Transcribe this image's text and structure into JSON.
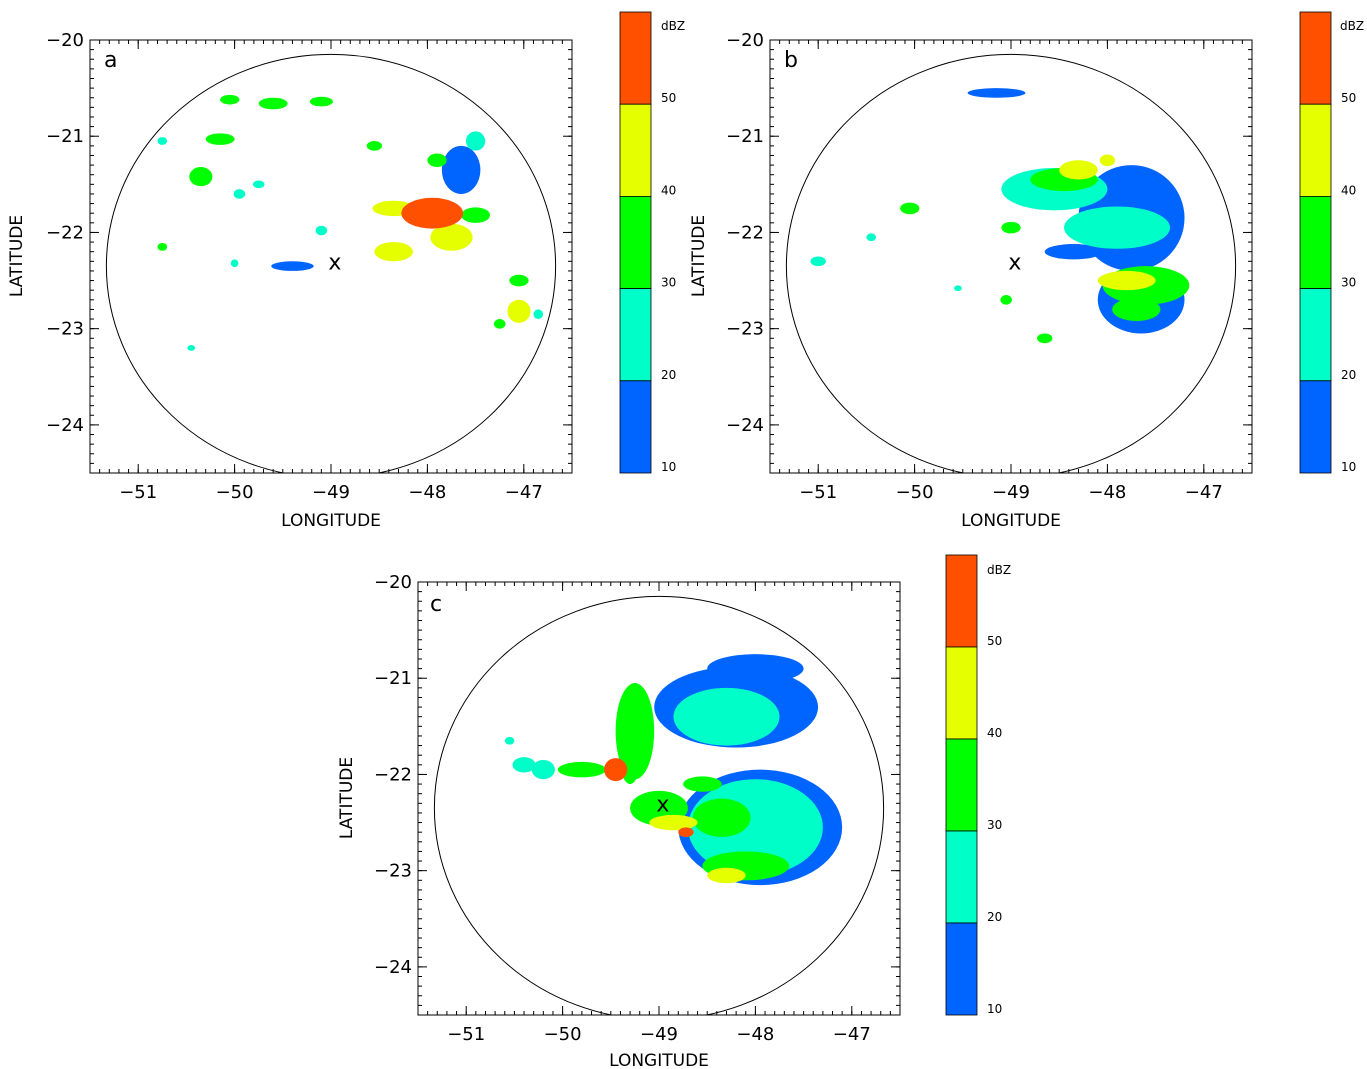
{
  "color_scale": {
    "unit_label": "dBZ",
    "boundaries": [
      10,
      20,
      30,
      40,
      50,
      57
    ],
    "tick_labels": [
      "10",
      "20",
      "30",
      "40",
      "50"
    ],
    "colors": [
      "#0064ff",
      "#00ffc8",
      "#00ff00",
      "#e6ff00",
      "#ff5000"
    ]
  },
  "marker_symbol": "x",
  "chart_data": [
    {
      "type": "heatmap",
      "panel_label": "a",
      "xlabel": "LONGITUDE",
      "ylabel": "LATITUDE",
      "xlim": [
        -51.5,
        -46.5
      ],
      "ylim": [
        -24.5,
        -20
      ],
      "xticks": [
        -51,
        -50,
        -49,
        -48,
        -47
      ],
      "xtick_labels": [
        "−51",
        "−50",
        "−49",
        "−48",
        "−47"
      ],
      "yticks": [
        -20,
        -21,
        -22,
        -23,
        -24
      ],
      "ytick_labels": [
        "−20",
        "−21",
        "−22",
        "−23",
        "−24"
      ],
      "range_ring": {
        "center": [
          -49.0,
          -22.35
        ],
        "r_lon": 2.33,
        "r_lat": 2.2
      },
      "radar_site": {
        "lon": -48.96,
        "lat": -22.3
      },
      "cells": [
        {
          "lon": -47.95,
          "lat": -21.8,
          "rx": 0.32,
          "ry": 0.16,
          "dbz": 52
        },
        {
          "lon": -47.75,
          "lat": -22.05,
          "rx": 0.22,
          "ry": 0.14,
          "dbz": 48
        },
        {
          "lon": -48.35,
          "lat": -21.75,
          "rx": 0.22,
          "ry": 0.08,
          "dbz": 40
        },
        {
          "lon": -48.35,
          "lat": -22.2,
          "rx": 0.2,
          "ry": 0.1,
          "dbz": 42
        },
        {
          "lon": -47.5,
          "lat": -21.82,
          "rx": 0.15,
          "ry": 0.08,
          "dbz": 35
        },
        {
          "lon": -47.9,
          "lat": -21.25,
          "rx": 0.1,
          "ry": 0.07,
          "dbz": 38
        },
        {
          "lon": -47.65,
          "lat": -21.35,
          "rx": 0.2,
          "ry": 0.25,
          "dbz": 18
        },
        {
          "lon": -47.5,
          "lat": -21.05,
          "rx": 0.1,
          "ry": 0.1,
          "dbz": 25
        },
        {
          "lon": -47.05,
          "lat": -22.5,
          "rx": 0.1,
          "ry": 0.06,
          "dbz": 35
        },
        {
          "lon": -47.05,
          "lat": -22.82,
          "rx": 0.12,
          "ry": 0.12,
          "dbz": 40
        },
        {
          "lon": -47.25,
          "lat": -22.95,
          "rx": 0.06,
          "ry": 0.05,
          "dbz": 35
        },
        {
          "lon": -46.85,
          "lat": -22.85,
          "rx": 0.05,
          "ry": 0.05,
          "dbz": 25
        },
        {
          "lon": -48.55,
          "lat": -21.1,
          "rx": 0.08,
          "ry": 0.05,
          "dbz": 30
        },
        {
          "lon": -49.1,
          "lat": -20.64,
          "rx": 0.12,
          "ry": 0.05,
          "dbz": 32
        },
        {
          "lon": -49.6,
          "lat": -20.66,
          "rx": 0.15,
          "ry": 0.06,
          "dbz": 38
        },
        {
          "lon": -50.05,
          "lat": -20.62,
          "rx": 0.1,
          "ry": 0.05,
          "dbz": 30
        },
        {
          "lon": -50.15,
          "lat": -21.03,
          "rx": 0.15,
          "ry": 0.06,
          "dbz": 35
        },
        {
          "lon": -50.35,
          "lat": -21.42,
          "rx": 0.12,
          "ry": 0.1,
          "dbz": 38
        },
        {
          "lon": -49.95,
          "lat": -21.6,
          "rx": 0.06,
          "ry": 0.05,
          "dbz": 25
        },
        {
          "lon": -49.75,
          "lat": -21.5,
          "rx": 0.06,
          "ry": 0.04,
          "dbz": 22
        },
        {
          "lon": -49.1,
          "lat": -21.98,
          "rx": 0.06,
          "ry": 0.05,
          "dbz": 20
        },
        {
          "lon": -50.75,
          "lat": -22.15,
          "rx": 0.05,
          "ry": 0.04,
          "dbz": 30
        },
        {
          "lon": -50.0,
          "lat": -22.32,
          "rx": 0.04,
          "ry": 0.04,
          "dbz": 25
        },
        {
          "lon": -50.75,
          "lat": -21.05,
          "rx": 0.05,
          "ry": 0.04,
          "dbz": 20
        },
        {
          "lon": -50.45,
          "lat": -23.2,
          "rx": 0.04,
          "ry": 0.03,
          "dbz": 22
        },
        {
          "lon": -49.4,
          "lat": -22.35,
          "rx": 0.22,
          "ry": 0.05,
          "dbz": 12
        }
      ]
    },
    {
      "type": "heatmap",
      "panel_label": "b",
      "xlabel": "LONGITUDE",
      "ylabel": "LATITUDE",
      "xlim": [
        -51.5,
        -46.5
      ],
      "ylim": [
        -24.5,
        -20
      ],
      "xticks": [
        -51,
        -50,
        -49,
        -48,
        -47
      ],
      "xtick_labels": [
        "−51",
        "−50",
        "−49",
        "−48",
        "−47"
      ],
      "yticks": [
        -20,
        -21,
        -22,
        -23,
        -24
      ],
      "ytick_labels": [
        "−20",
        "−21",
        "−22",
        "−23",
        "−24"
      ],
      "range_ring": {
        "center": [
          -49.0,
          -22.35
        ],
        "r_lon": 2.33,
        "r_lat": 2.2
      },
      "radar_site": {
        "lon": -48.96,
        "lat": -22.3
      },
      "cells": [
        {
          "lon": -47.75,
          "lat": -21.85,
          "rx": 0.55,
          "ry": 0.55,
          "dbz": 16
        },
        {
          "lon": -47.65,
          "lat": -22.7,
          "rx": 0.45,
          "ry": 0.35,
          "dbz": 16
        },
        {
          "lon": -47.9,
          "lat": -21.95,
          "rx": 0.55,
          "ry": 0.22,
          "dbz": 26
        },
        {
          "lon": -48.55,
          "lat": -21.55,
          "rx": 0.55,
          "ry": 0.22,
          "dbz": 28
        },
        {
          "lon": -48.45,
          "lat": -21.45,
          "rx": 0.35,
          "ry": 0.12,
          "dbz": 36
        },
        {
          "lon": -48.3,
          "lat": -21.35,
          "rx": 0.2,
          "ry": 0.1,
          "dbz": 44
        },
        {
          "lon": -48.0,
          "lat": -21.25,
          "rx": 0.08,
          "ry": 0.06,
          "dbz": 40
        },
        {
          "lon": -47.6,
          "lat": -22.55,
          "rx": 0.45,
          "ry": 0.2,
          "dbz": 32
        },
        {
          "lon": -47.8,
          "lat": -22.5,
          "rx": 0.3,
          "ry": 0.1,
          "dbz": 42
        },
        {
          "lon": -47.7,
          "lat": -22.8,
          "rx": 0.25,
          "ry": 0.12,
          "dbz": 30
        },
        {
          "lon": -49.0,
          "lat": -21.95,
          "rx": 0.1,
          "ry": 0.06,
          "dbz": 32
        },
        {
          "lon": -49.05,
          "lat": -22.7,
          "rx": 0.06,
          "ry": 0.05,
          "dbz": 30
        },
        {
          "lon": -48.65,
          "lat": -23.1,
          "rx": 0.08,
          "ry": 0.05,
          "dbz": 32
        },
        {
          "lon": -49.15,
          "lat": -20.55,
          "rx": 0.3,
          "ry": 0.05,
          "dbz": 14
        },
        {
          "lon": -50.05,
          "lat": -21.75,
          "rx": 0.1,
          "ry": 0.06,
          "dbz": 30
        },
        {
          "lon": -50.45,
          "lat": -22.05,
          "rx": 0.05,
          "ry": 0.04,
          "dbz": 28
        },
        {
          "lon": -51.0,
          "lat": -22.3,
          "rx": 0.08,
          "ry": 0.05,
          "dbz": 26
        },
        {
          "lon": -49.55,
          "lat": -22.58,
          "rx": 0.04,
          "ry": 0.03,
          "dbz": 22
        },
        {
          "lon": -48.35,
          "lat": -22.2,
          "rx": 0.3,
          "ry": 0.08,
          "dbz": 12
        }
      ]
    },
    {
      "type": "heatmap",
      "panel_label": "c",
      "xlabel": "LONGITUDE",
      "ylabel": "LATITUDE",
      "xlim": [
        -51.5,
        -46.5
      ],
      "ylim": [
        -24.5,
        -20
      ],
      "xticks": [
        -51,
        -50,
        -49,
        -48,
        -47
      ],
      "xtick_labels": [
        "−51",
        "−50",
        "−49",
        "−48",
        "−47"
      ],
      "yticks": [
        -20,
        -21,
        -22,
        -23,
        -24
      ],
      "ytick_labels": [
        "−20",
        "−21",
        "−22",
        "−23",
        "−24"
      ],
      "range_ring": {
        "center": [
          -49.0,
          -22.35
        ],
        "r_lon": 2.33,
        "r_lat": 2.2
      },
      "radar_site": {
        "lon": -48.96,
        "lat": -22.3
      },
      "cells": [
        {
          "lon": -48.2,
          "lat": -21.3,
          "rx": 0.85,
          "ry": 0.42,
          "dbz": 16
        },
        {
          "lon": -47.95,
          "lat": -22.55,
          "rx": 0.85,
          "ry": 0.6,
          "dbz": 16
        },
        {
          "lon": -48.3,
          "lat": -21.4,
          "rx": 0.55,
          "ry": 0.3,
          "dbz": 25
        },
        {
          "lon": -48.0,
          "lat": -22.55,
          "rx": 0.7,
          "ry": 0.5,
          "dbz": 26
        },
        {
          "lon": -48.35,
          "lat": -22.45,
          "rx": 0.3,
          "ry": 0.2,
          "dbz": 33
        },
        {
          "lon": -48.1,
          "lat": -22.95,
          "rx": 0.45,
          "ry": 0.15,
          "dbz": 37
        },
        {
          "lon": -48.3,
          "lat": -23.05,
          "rx": 0.2,
          "ry": 0.08,
          "dbz": 44
        },
        {
          "lon": -48.55,
          "lat": -22.1,
          "rx": 0.2,
          "ry": 0.08,
          "dbz": 32
        },
        {
          "lon": -49.25,
          "lat": -21.55,
          "rx": 0.2,
          "ry": 0.5,
          "dbz": 30
        },
        {
          "lon": -49.3,
          "lat": -21.75,
          "rx": 0.12,
          "ry": 0.35,
          "dbz": 38
        },
        {
          "lon": -49.45,
          "lat": -21.95,
          "rx": 0.12,
          "ry": 0.12,
          "dbz": 50
        },
        {
          "lon": -49.0,
          "lat": -22.35,
          "rx": 0.3,
          "ry": 0.18,
          "dbz": 34
        },
        {
          "lon": -48.85,
          "lat": -22.5,
          "rx": 0.25,
          "ry": 0.08,
          "dbz": 42
        },
        {
          "lon": -48.72,
          "lat": -22.6,
          "rx": 0.08,
          "ry": 0.05,
          "dbz": 52
        },
        {
          "lon": -49.8,
          "lat": -21.95,
          "rx": 0.25,
          "ry": 0.08,
          "dbz": 34
        },
        {
          "lon": -50.2,
          "lat": -21.95,
          "rx": 0.12,
          "ry": 0.1,
          "dbz": 28
        },
        {
          "lon": -50.4,
          "lat": -21.9,
          "rx": 0.12,
          "ry": 0.08,
          "dbz": 20
        },
        {
          "lon": -50.55,
          "lat": -21.65,
          "rx": 0.05,
          "ry": 0.04,
          "dbz": 25
        },
        {
          "lon": -48.0,
          "lat": -20.9,
          "rx": 0.5,
          "ry": 0.15,
          "dbz": 14
        }
      ]
    }
  ]
}
